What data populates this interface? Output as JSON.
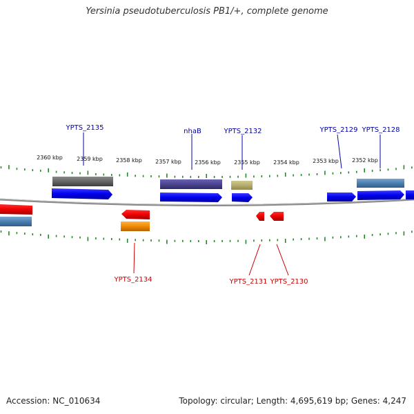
{
  "title": "Yersinia pseudotuberculosis PB1/+, complete genome",
  "footer": {
    "accession": "Accession: NC_010634",
    "topology": "Topology: circular; Length: 4,695,619 bp; Genes: 4,247"
  },
  "kbp_labels": [
    "2360 kbp",
    "2359 kbp",
    "2358 kbp",
    "2357 kbp",
    "2356 kbp",
    "2355 kbp",
    "2354 kbp",
    "2353 kbp",
    "2352 kbp"
  ],
  "gene_labels_top": [
    "YPTS_2135",
    "nhaB",
    "YPTS_2132",
    "YPTS_2129",
    "YPTS_2128"
  ],
  "gene_labels_bottom": [
    "YPTS_2134",
    "YPTS_2131",
    "YPTS_2130"
  ],
  "colors": {
    "forward_gene": "#0000ee",
    "reverse_gene": "#ee0000",
    "tick": "#228822",
    "label_forward": "#0000aa",
    "label_reverse": "#cc0000",
    "backbone": "#8a8a8a"
  }
}
